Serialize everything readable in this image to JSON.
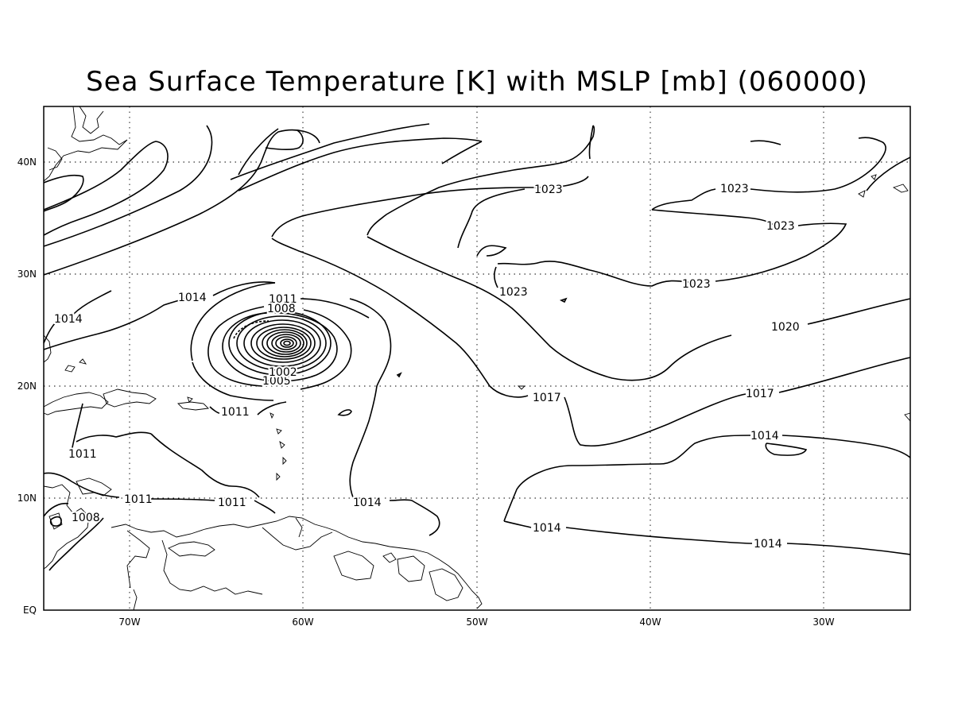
{
  "title": "Sea Surface Temperature [K] with MSLP [mb] (060000)",
  "map": {
    "lon_labels": [
      "70W",
      "60W",
      "50W",
      "40W",
      "30W"
    ],
    "lat_labels": [
      "EQ",
      "10N",
      "20N",
      "30N",
      "40N"
    ]
  },
  "contour_labels": [
    "1023",
    "1023",
    "1023",
    "1023",
    "1023",
    "1020",
    "1017",
    "1017",
    "1014",
    "1014",
    "1014",
    "1014",
    "1014",
    "1014",
    "1011",
    "1011",
    "1011",
    "1011",
    "1011",
    "1008",
    "1008",
    "1005",
    "1002"
  ]
}
